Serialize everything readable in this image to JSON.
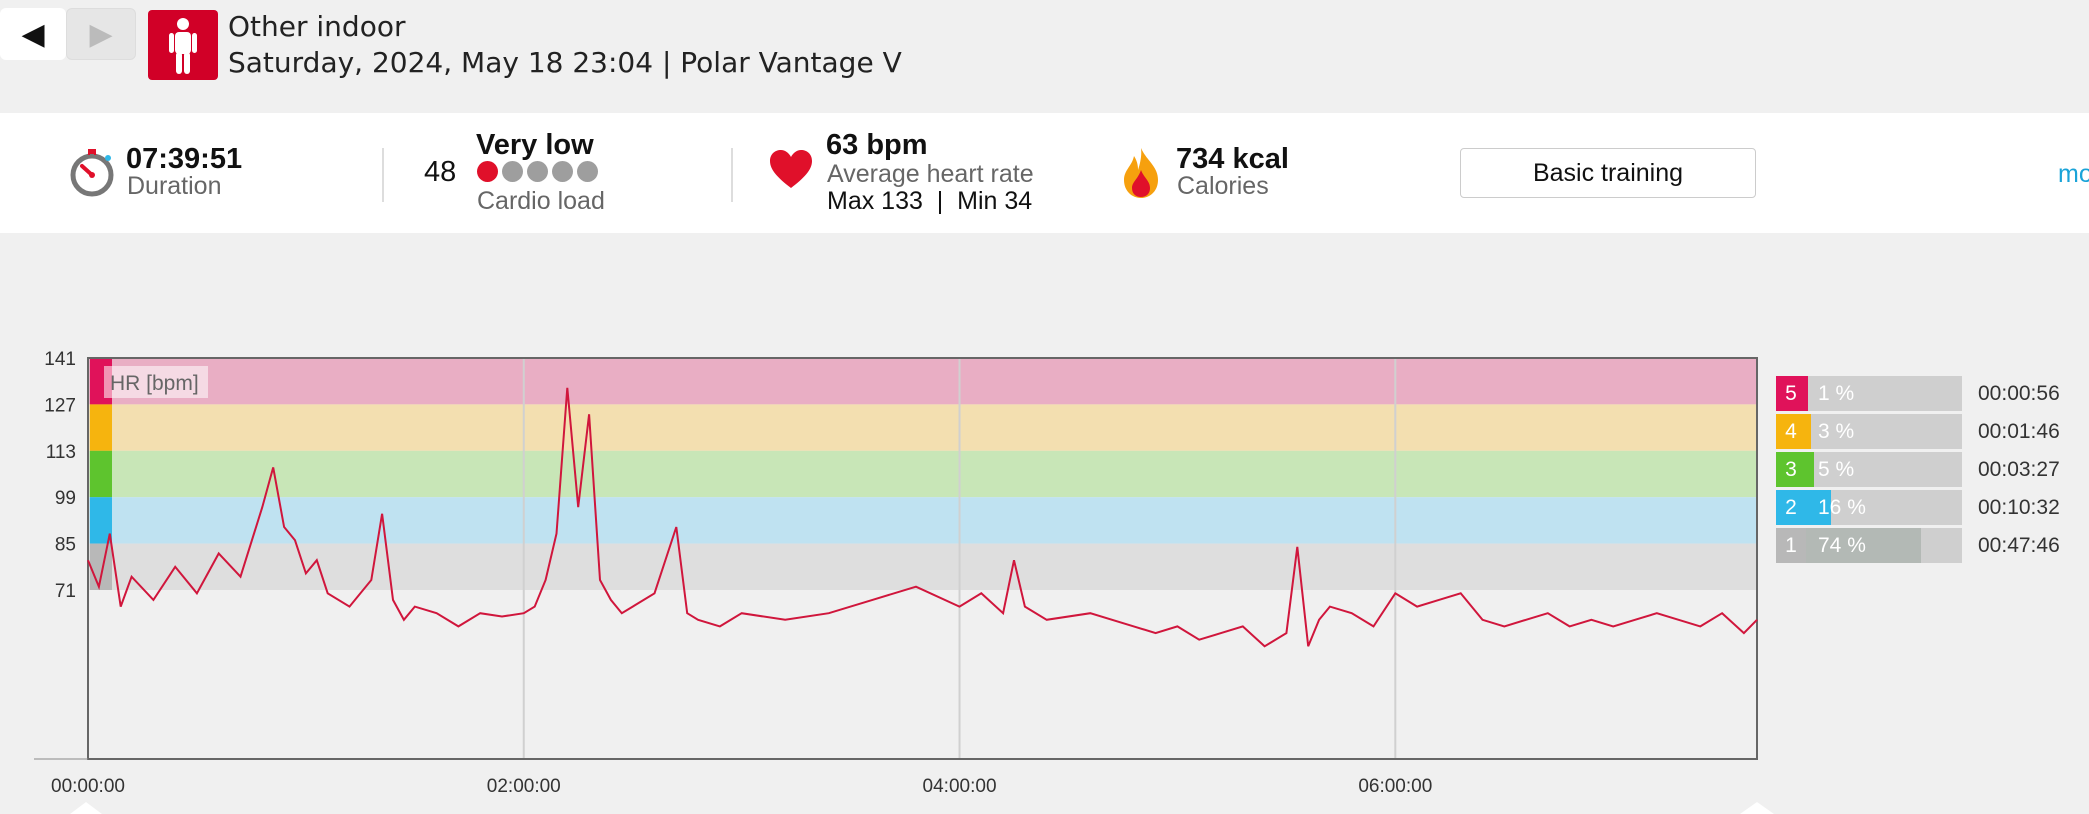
{
  "nav": {
    "back_icon": "◀",
    "forward_icon": "▶"
  },
  "header": {
    "sport_icon": "person-standing-icon",
    "title": "Other indoor",
    "subtitle": "Saturday, 2024, May 18 23:04 | Polar Vantage V"
  },
  "summary": {
    "duration_value": "07:39:51",
    "duration_label": "Duration",
    "cardio_value": "48",
    "cardio_level": "Very low",
    "cardio_label": "Cardio load",
    "cardio_dots_active": 1,
    "cardio_dots_total": 5,
    "hr_value": "63 bpm",
    "hr_label": "Average heart rate",
    "hr_range": "Max 133  |  Min 34",
    "calories_value": "734 kcal",
    "calories_label": "Calories",
    "training_button": "Basic training",
    "more_link": "mo"
  },
  "colors": {
    "zone5": "#e0125a",
    "zone4": "#f6b40e",
    "zone3": "#5ec42e",
    "zone2": "#2fb8e8",
    "zone1": "#b8b8b8",
    "hr_line": "#d0163c",
    "brand_red": "#d10027"
  },
  "zones": [
    {
      "zone": "5",
      "percent_label": "1 %",
      "percent": 1,
      "time": "00:00:56"
    },
    {
      "zone": "4",
      "percent_label": "3 %",
      "percent": 3,
      "time": "00:01:46"
    },
    {
      "zone": "3",
      "percent_label": "5 %",
      "percent": 5,
      "time": "00:03:27"
    },
    {
      "zone": "2",
      "percent_label": "16 %",
      "percent": 16,
      "time": "00:10:32"
    },
    {
      "zone": "1",
      "percent_label": "74 %",
      "percent": 74,
      "time": "00:47:46"
    }
  ],
  "chart_data": {
    "type": "line",
    "series_label": "HR [bpm]",
    "x_unit": "hours",
    "xlim": [
      0,
      7.66
    ],
    "ylim": [
      20,
      141
    ],
    "y_ticks": [
      "141",
      "127",
      "113",
      "99",
      "85",
      "71"
    ],
    "x_ticks": [
      "00:00:00",
      "02:00:00",
      "04:00:00",
      "06:00:00"
    ],
    "zone_bands": [
      {
        "zone": 5,
        "from": 127,
        "to": 141
      },
      {
        "zone": 4,
        "from": 113,
        "to": 127
      },
      {
        "zone": 3,
        "from": 99,
        "to": 113
      },
      {
        "zone": 2,
        "from": 85,
        "to": 99
      },
      {
        "zone": 1,
        "from": 71,
        "to": 85
      }
    ],
    "x": [
      0,
      0.05,
      0.1,
      0.15,
      0.2,
      0.3,
      0.4,
      0.5,
      0.6,
      0.7,
      0.8,
      0.85,
      0.9,
      0.95,
      1.0,
      1.05,
      1.1,
      1.2,
      1.3,
      1.35,
      1.4,
      1.45,
      1.5,
      1.6,
      1.7,
      1.8,
      1.9,
      2.0,
      2.05,
      2.1,
      2.15,
      2.2,
      2.25,
      2.3,
      2.35,
      2.4,
      2.45,
      2.5,
      2.6,
      2.7,
      2.75,
      2.8,
      2.9,
      3.0,
      3.2,
      3.4,
      3.6,
      3.8,
      4.0,
      4.1,
      4.2,
      4.25,
      4.3,
      4.4,
      4.6,
      4.8,
      4.9,
      5.0,
      5.1,
      5.2,
      5.3,
      5.4,
      5.5,
      5.55,
      5.6,
      5.65,
      5.7,
      5.8,
      5.9,
      6.0,
      6.1,
      6.2,
      6.3,
      6.4,
      6.5,
      6.6,
      6.7,
      6.8,
      6.9,
      7.0,
      7.1,
      7.2,
      7.3,
      7.4,
      7.5,
      7.6,
      7.66
    ],
    "y": [
      80,
      72,
      88,
      66,
      75,
      68,
      78,
      70,
      82,
      75,
      96,
      108,
      90,
      86,
      76,
      80,
      70,
      66,
      74,
      94,
      68,
      62,
      66,
      64,
      60,
      64,
      63,
      64,
      66,
      74,
      88,
      132,
      96,
      124,
      74,
      68,
      64,
      66,
      70,
      90,
      64,
      62,
      60,
      64,
      62,
      64,
      68,
      72,
      66,
      70,
      64,
      80,
      66,
      62,
      64,
      60,
      58,
      60,
      56,
      58,
      60,
      54,
      58,
      84,
      54,
      62,
      66,
      64,
      60,
      70,
      66,
      68,
      70,
      62,
      60,
      62,
      64,
      60,
      62,
      60,
      62,
      64,
      62,
      60,
      64,
      58,
      62
    ]
  }
}
